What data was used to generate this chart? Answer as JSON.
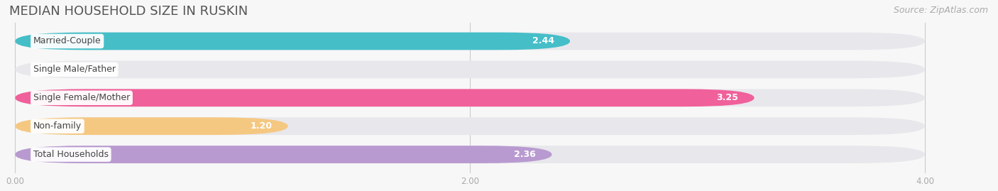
{
  "title": "MEDIAN HOUSEHOLD SIZE IN RUSKIN",
  "source": "Source: ZipAtlas.com",
  "categories": [
    "Married-Couple",
    "Single Male/Father",
    "Single Female/Mother",
    "Non-family",
    "Total Households"
  ],
  "values": [
    2.44,
    0.0,
    3.25,
    1.2,
    2.36
  ],
  "bar_colors": [
    "#45bec8",
    "#a8bce8",
    "#f0609a",
    "#f5c882",
    "#b89ad0"
  ],
  "bg_track_color": "#e8e8ec",
  "xlim_max": 4.0,
  "xtick_labels": [
    "0.00",
    "2.00",
    "4.00"
  ],
  "xtick_values": [
    0.0,
    2.0,
    4.0
  ],
  "fig_bg_color": "#f7f7f7",
  "bar_height": 0.62,
  "title_fontsize": 13,
  "source_fontsize": 9,
  "label_fontsize": 9,
  "value_fontsize": 9,
  "cat_label_bg": "#ffffff"
}
